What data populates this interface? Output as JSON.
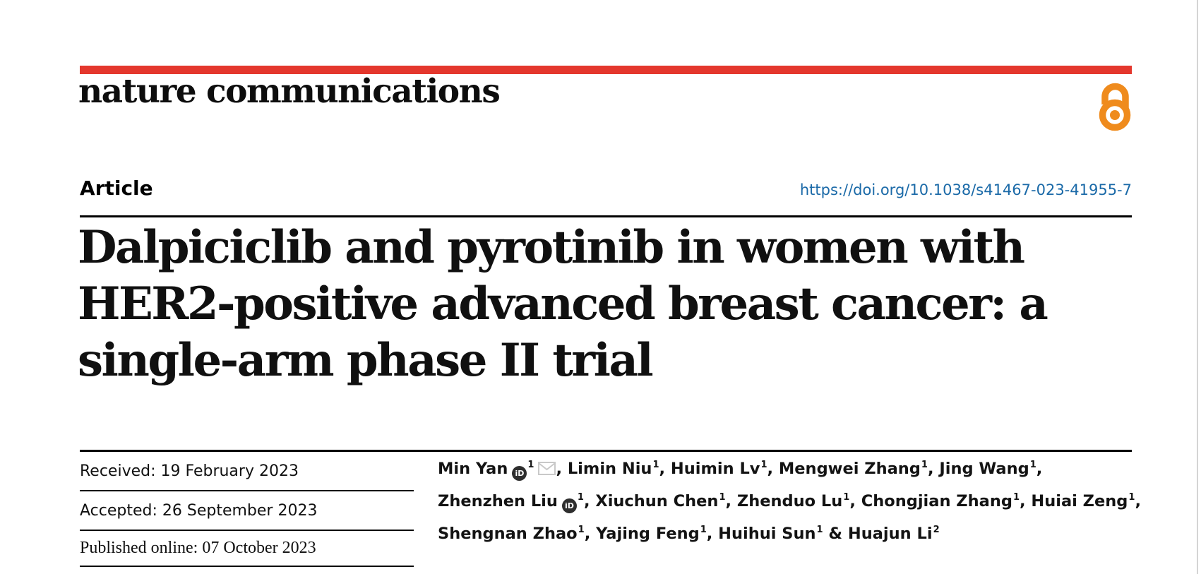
{
  "colors": {
    "brand_red": "#e4372d",
    "open_access_orange": "#ef8b1d",
    "link_blue": "#1b6aa8",
    "orcid_bg": "#2e2e2e",
    "envelope_gray": "#c9c9c9"
  },
  "masthead": {
    "journal_name": "nature communications",
    "open_access_icon": "open-access-lock-icon"
  },
  "article_header": {
    "type_label": "Article",
    "doi_text": "https://doi.org/10.1038/s41467-023-41955-7",
    "doi_href": "https://doi.org/10.1038/s41467-023-41955-7"
  },
  "title": {
    "lines": [
      "Dalpiciclib and pyrotinib in women with",
      "HER2-positive advanced breast cancer: a",
      "single-arm phase II trial"
    ]
  },
  "dates": {
    "received": "Received: 19 February 2023",
    "accepted": "Accepted: 26 September 2023",
    "published": "Published online: 07 October 2023"
  },
  "authors": {
    "orcid_icon_label": "iD",
    "lines": [
      [
        {
          "name": "Min Yan",
          "orcid": true,
          "sup": "1",
          "email": true,
          "sep": ", "
        },
        {
          "name": "Limin Niu",
          "sup": "1",
          "sep": ", "
        },
        {
          "name": "Huimin Lv",
          "sup": "1",
          "sep": ", "
        },
        {
          "name": "Mengwei Zhang",
          "sup": "1",
          "sep": ", "
        },
        {
          "name": "Jing Wang",
          "sup": "1",
          "sep": ","
        }
      ],
      [
        {
          "name": "Zhenzhen Liu",
          "orcid": true,
          "sup": "1",
          "sep": ", "
        },
        {
          "name": "Xiuchun Chen",
          "sup": "1",
          "sep": ", "
        },
        {
          "name": "Zhenduo Lu",
          "sup": "1",
          "sep": ", "
        },
        {
          "name": "Chongjian Zhang",
          "sup": "1",
          "sep": ", "
        },
        {
          "name": "Huiai Zeng",
          "sup": "1",
          "sep": ","
        }
      ],
      [
        {
          "name": "Shengnan Zhao",
          "sup": "1",
          "sep": ", "
        },
        {
          "name": "Yajing Feng",
          "sup": "1",
          "sep": ", "
        },
        {
          "name": "Huihui Sun",
          "sup": "1",
          "sep": " & "
        },
        {
          "name": "Huajun Li",
          "sup": "2",
          "sep": ""
        }
      ]
    ]
  }
}
